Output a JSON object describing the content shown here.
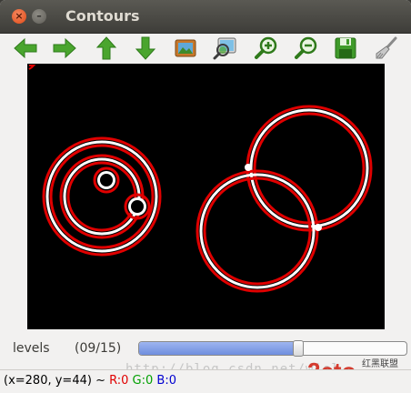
{
  "window": {
    "title": "Contours",
    "buttons": [
      "close",
      "minimize"
    ]
  },
  "toolbar": {
    "items": [
      {
        "name": "pan-left",
        "icon": "arrow-left-icon",
        "color": "#4aa52e"
      },
      {
        "name": "pan-right",
        "icon": "arrow-right-icon",
        "color": "#4aa52e"
      },
      {
        "name": "pan-up",
        "icon": "arrow-up-icon",
        "color": "#4aa52e"
      },
      {
        "name": "pan-down",
        "icon": "arrow-down-icon",
        "color": "#4aa52e"
      },
      {
        "name": "zoom-reset",
        "icon": "picture-icon"
      },
      {
        "name": "zoom-to-image",
        "icon": "zoom-picture-icon"
      },
      {
        "name": "zoom-in",
        "icon": "zoom-in-icon"
      },
      {
        "name": "zoom-out",
        "icon": "zoom-out-icon"
      },
      {
        "name": "save",
        "icon": "save-icon"
      },
      {
        "name": "properties",
        "icon": "brush-icon"
      }
    ]
  },
  "canvas": {
    "background": "#000000",
    "contour_color": "#e00000",
    "highlight_color": "#ffffff"
  },
  "trackbar": {
    "label": "levels",
    "value_text": "(09/15)",
    "fraction": 0.6
  },
  "status": {
    "coords": "(x=280, y=44) ~",
    "r": "R:0",
    "g": "G:0",
    "b": "B:0"
  },
  "watermark": {
    "url": "http://blog.csdn.net/wiel",
    "logo_text": "2cto",
    "logo_domain": ".com",
    "logo_cn": "红黑联盟"
  }
}
